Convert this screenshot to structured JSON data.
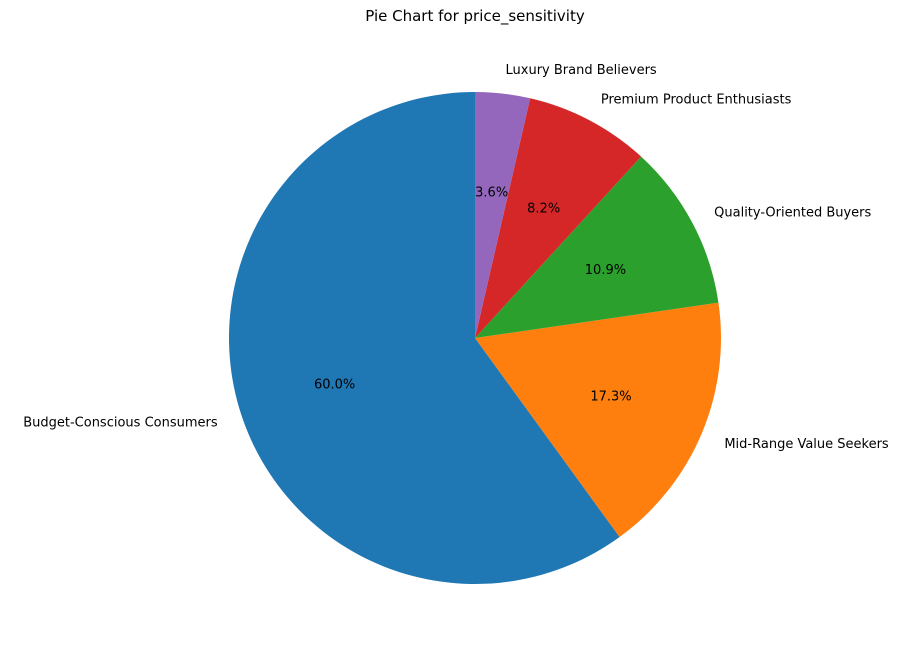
{
  "chart_data": {
    "type": "pie",
    "title": "Pie Chart for price_sensitivity",
    "start_angle_deg": 90,
    "direction": "counterclockwise",
    "slices": [
      {
        "label": "Budget-Conscious Consumers",
        "value": 60.0,
        "pct_label": "60.0%",
        "color": "#1f77b4"
      },
      {
        "label": "Mid-Range Value Seekers",
        "value": 17.3,
        "pct_label": "17.3%",
        "color": "#ff7f0e"
      },
      {
        "label": "Quality-Oriented Buyers",
        "value": 10.9,
        "pct_label": "10.9%",
        "color": "#2ca02c"
      },
      {
        "label": "Premium Product Enthusiasts",
        "value": 8.2,
        "pct_label": "8.2%",
        "color": "#d62728"
      },
      {
        "label": "Luxury Brand Believers",
        "value": 3.6,
        "pct_label": "3.6%",
        "color": "#9467bd"
      }
    ]
  }
}
